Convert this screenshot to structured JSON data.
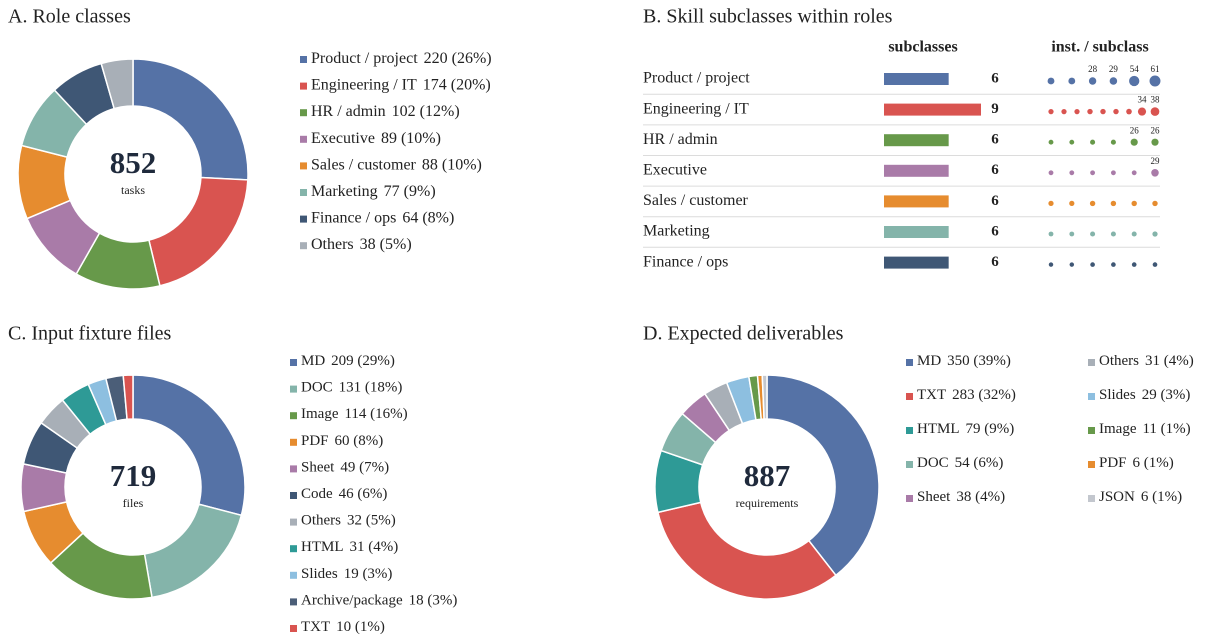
{
  "chart_data": [
    {
      "type": "donut",
      "title": "A. Role classes",
      "total": 852,
      "center_label": "tasks",
      "categories": [
        "Product / project",
        "Engineering / IT",
        "HR / admin",
        "Executive",
        "Sales / customer",
        "Marketing",
        "Finance / ops",
        "Others"
      ],
      "values": [
        220,
        174,
        102,
        89,
        88,
        77,
        64,
        38
      ],
      "value_labels": [
        "220 (26%)",
        "174 (20%)",
        "102 (12%)",
        "89 (10%)",
        "88 (10%)",
        "77 (9%)",
        "64 (8%)",
        "38 (5%)"
      ],
      "colors": [
        "#5572a6",
        "#d95450",
        "#67994a",
        "#a97ba8",
        "#e68c2f",
        "#84b4aa",
        "#3f5775",
        "#a8afb7"
      ],
      "legend_columns": 1
    },
    {
      "type": "dotplot",
      "title": "B. Skill subclasses within roles",
      "column_labels": [
        "subclasses",
        "inst. / subclass"
      ],
      "categories": [
        "Product / project",
        "Engineering / IT",
        "HR / admin",
        "Executive",
        "Sales / customer",
        "Marketing",
        "Finance / ops"
      ],
      "colors": [
        "#5572a6",
        "#d95450",
        "#67994a",
        "#a97ba8",
        "#e68c2f",
        "#84b4aa",
        "#3f5775"
      ],
      "subclasses": [
        6,
        9,
        6,
        6,
        6,
        6,
        6
      ],
      "xlim": [
        0,
        9
      ],
      "instances": [
        [
          24,
          24,
          28,
          29,
          54,
          61
        ],
        [
          14,
          14,
          14,
          15,
          15,
          15,
          16,
          34,
          38
        ],
        [
          12,
          12,
          13,
          13,
          26,
          26
        ],
        [
          12,
          12,
          12,
          12,
          12,
          29
        ],
        [
          14,
          14,
          15,
          15,
          15,
          15
        ],
        [
          12,
          12,
          13,
          13,
          13,
          14
        ],
        [
          10,
          10,
          11,
          11,
          11,
          11
        ]
      ],
      "labeled": [
        [
          false,
          false,
          true,
          true,
          true,
          true
        ],
        [
          false,
          false,
          false,
          false,
          false,
          false,
          false,
          true,
          true
        ],
        [
          false,
          false,
          false,
          false,
          true,
          true
        ],
        [
          false,
          false,
          false,
          false,
          false,
          true
        ],
        [
          false,
          false,
          false,
          false,
          false,
          false
        ],
        [
          false,
          false,
          false,
          false,
          false,
          false
        ],
        [
          false,
          false,
          false,
          false,
          false,
          false
        ]
      ]
    },
    {
      "type": "donut",
      "title": "C. Input fixture files",
      "total": 719,
      "center_label": "files",
      "categories": [
        "MD",
        "DOC",
        "Image",
        "PDF",
        "Sheet",
        "Code",
        "Others",
        "HTML",
        "Slides",
        "Archive/package",
        "TXT"
      ],
      "values": [
        209,
        131,
        114,
        60,
        49,
        46,
        32,
        31,
        19,
        18,
        10
      ],
      "value_labels": [
        "209 (29%)",
        "131 (18%)",
        "114 (16%)",
        "60 (8%)",
        "49 (7%)",
        "46 (6%)",
        "32 (5%)",
        "31 (4%)",
        "19 (3%)",
        "18 (3%)",
        "10 (1%)"
      ],
      "colors": [
        "#5572a6",
        "#84b4aa",
        "#67994a",
        "#e68c2f",
        "#a97ba8",
        "#3f5775",
        "#a8afb7",
        "#2e9a96",
        "#8dbfe0",
        "#4b5e78",
        "#d95450"
      ],
      "legend_columns": 1
    },
    {
      "type": "donut",
      "title": "D. Expected deliverables",
      "total": 887,
      "center_label": "requirements",
      "categories": [
        "MD",
        "TXT",
        "HTML",
        "DOC",
        "Sheet",
        "Others",
        "Slides",
        "Image",
        "PDF",
        "JSON"
      ],
      "values": [
        350,
        283,
        79,
        54,
        38,
        31,
        29,
        11,
        6,
        6
      ],
      "value_labels": [
        "350 (39%)",
        "283 (32%)",
        "79 (9%)",
        "54 (6%)",
        "38 (4%)",
        "31 (4%)",
        "29 (3%)",
        "11 (1%)",
        "6 (1%)",
        "6 (1%)"
      ],
      "colors": [
        "#5572a6",
        "#d95450",
        "#2e9a96",
        "#84b4aa",
        "#a97ba8",
        "#a8afb7",
        "#8dbfe0",
        "#67994a",
        "#e68c2f",
        "#c3c7ce"
      ],
      "legend_columns": 2
    }
  ]
}
